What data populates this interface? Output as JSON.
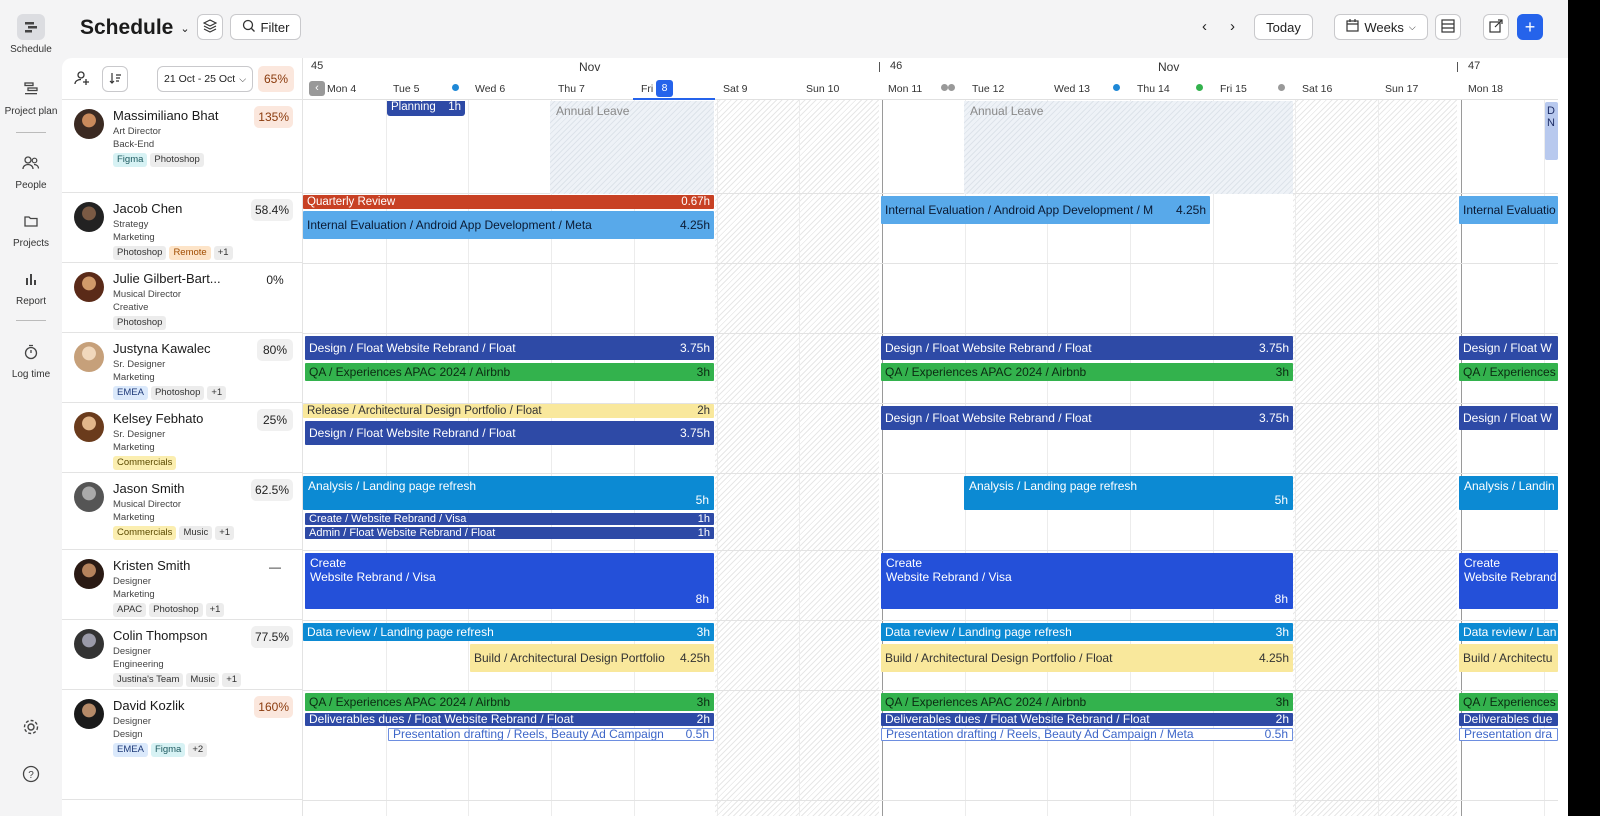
{
  "nav": {
    "schedule": "Schedule",
    "project_plan": "Project plan",
    "people": "People",
    "projects": "Projects",
    "report": "Report",
    "log_time": "Log time"
  },
  "header": {
    "title": "Schedule",
    "filter": "Filter",
    "today": "Today",
    "weeks": "Weeks"
  },
  "toolbar": {
    "date_range": "21 Oct - 25 Oct",
    "utilization": "65%"
  },
  "calendar": {
    "weeks": [
      "45",
      "46",
      "47"
    ],
    "months": [
      "Nov",
      "Nov"
    ],
    "days": [
      "Mon 4",
      "Tue 5",
      "Wed 6",
      "Thu 7",
      "Fri",
      "8",
      "Sat 9",
      "Sun 10",
      "Mon 11",
      "Tue 12",
      "Wed 13",
      "Thu 14",
      "Fri 15",
      "Sat 16",
      "Sun 17",
      "Mon 18"
    ]
  },
  "people": [
    {
      "name": "Massimiliano Bhat",
      "role": "Art Director",
      "dept": "Back-End",
      "util": "135%",
      "tags": [
        "Figma",
        "Photoshop"
      ]
    },
    {
      "name": "Jacob Chen",
      "role": "Strategy",
      "dept": "Marketing",
      "util": "58.4%",
      "tags": [
        "Photoshop",
        "Remote",
        "+1"
      ]
    },
    {
      "name": "Julie Gilbert-Bart...",
      "role": "Musical Director",
      "dept": "Creative",
      "util": "0%",
      "tags": [
        "Photoshop"
      ]
    },
    {
      "name": "Justyna Kawalec",
      "role": "Sr. Designer",
      "dept": "Marketing",
      "util": "80%",
      "tags": [
        "EMEA",
        "Photoshop",
        "+1"
      ]
    },
    {
      "name": "Kelsey Febhato",
      "role": "Sr. Designer",
      "dept": "Marketing",
      "util": "25%",
      "tags": [
        "Commercials"
      ]
    },
    {
      "name": "Jason Smith",
      "role": "Musical Director",
      "dept": "Marketing",
      "util": "62.5%",
      "tags": [
        "Commercials",
        "Music",
        "+1"
      ]
    },
    {
      "name": "Kristen Smith",
      "role": "Designer",
      "dept": "Marketing",
      "util": "—",
      "tags": [
        "APAC",
        "Photoshop",
        "+1"
      ]
    },
    {
      "name": "Colin Thompson",
      "role": "Designer",
      "dept": "Engineering",
      "util": "77.5%",
      "tags": [
        "Justina's Team",
        "Music",
        "+1"
      ]
    },
    {
      "name": "David Kozlik",
      "role": "Designer",
      "dept": "Design",
      "util": "160%",
      "tags": [
        "EMEA",
        "Figma",
        "+2"
      ]
    }
  ],
  "leave": {
    "label": "Annual Leave"
  },
  "tasks": {
    "planning": {
      "name": "Planning",
      "hours": "1h"
    },
    "quarterly": {
      "name": "Quarterly Review",
      "hours": "0.67h"
    },
    "ie1": {
      "name": "Internal Evaluation / Android App Development / Meta",
      "hours": "4.25h"
    },
    "ie2": {
      "name": "Internal Evaluation / Android App Development / M",
      "hours": "4.25h"
    },
    "ie3": {
      "name": "Internal Evaluatio"
    },
    "design": {
      "name": "Design / Float Website Rebrand / Float",
      "hours": "3.75h"
    },
    "design_c": {
      "name": "Design / Float W"
    },
    "qa": {
      "name": "QA / Experiences APAC 2024 / Airbnb",
      "hours": "3h"
    },
    "qa_c": {
      "name": "QA / Experiences"
    },
    "release": {
      "name": "Release / Architectural Design Portfolio / Float",
      "hours": "2h"
    },
    "analysis": {
      "name": "Analysis / Landing page refresh",
      "hours": "5h"
    },
    "analysis_c": {
      "name": "Analysis / Landin"
    },
    "create_visa": {
      "name": "Create / Website Rebrand / Visa",
      "hours": "1h"
    },
    "admin": {
      "name": "Admin / Float Website Rebrand / Float",
      "hours": "1h"
    },
    "create_big": {
      "line1": "Create",
      "line2": "Website Rebrand / Visa",
      "hours": "8h"
    },
    "data_review": {
      "name": "Data review / Landing page refresh",
      "hours": "3h"
    },
    "data_review_c": {
      "name": "Data review / Lan"
    },
    "build1": {
      "name": "Build / Architectural Design Portfolio",
      "hours": "4.25h"
    },
    "build2": {
      "name": "Build / Architectural Design Portfolio / Float",
      "hours": "4.25h"
    },
    "build_c": {
      "name": "Build / Architectu"
    },
    "deliverables": {
      "name": "Deliverables dues / Float Website Rebrand / Float",
      "hours": "2h"
    },
    "deliverables_c": {
      "name": "Deliverables due"
    },
    "presentation1": {
      "name": "Presentation drafting / Reels, Beauty Ad Campaign",
      "hours": "0.5h"
    },
    "presentation2": {
      "name": "Presentation drafting / Reels, Beauty Ad Campaign / Meta",
      "hours": "0.5h"
    },
    "presentation_c": {
      "name": "Presentation dra"
    },
    "side": {
      "name": "D N"
    }
  },
  "colors": {
    "navy": "#2e4aa6",
    "green": "#33b24d",
    "blue": "#0c8ad3",
    "red": "#c84124",
    "yellow": "#f9e89c",
    "accent": "#2563eb"
  }
}
